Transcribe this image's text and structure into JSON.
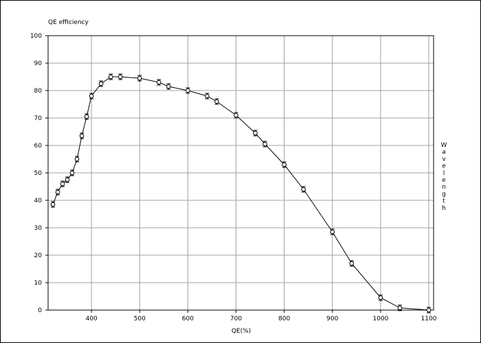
{
  "chart_data": {
    "type": "line",
    "title": "QE efficiency",
    "xlabel": "QE(%)",
    "ylabel": "Wavelength",
    "xlim": [
      310,
      1110
    ],
    "ylim": [
      0,
      100
    ],
    "grid": true,
    "x_ticks": [
      400,
      500,
      600,
      700,
      800,
      900,
      1000,
      1100
    ],
    "y_ticks": [
      0,
      10,
      20,
      30,
      40,
      50,
      60,
      70,
      80,
      90,
      100
    ],
    "series": [
      {
        "marker": "circle",
        "error_bars": true,
        "x": [
          320,
          330,
          340,
          350,
          360,
          370,
          380,
          390,
          400,
          420,
          440,
          460,
          500,
          540,
          560,
          600,
          640,
          660,
          700,
          740,
          760,
          800,
          840,
          900,
          940,
          1000,
          1040,
          1100
        ],
        "y": [
          38.5,
          43,
          46,
          47.5,
          50,
          55,
          63.5,
          70.5,
          78,
          82.5,
          85,
          85,
          84.5,
          83,
          81.5,
          80,
          78,
          76,
          71,
          64.5,
          60.5,
          53,
          44,
          28.5,
          17,
          4.5,
          0.8,
          0
        ]
      }
    ]
  }
}
